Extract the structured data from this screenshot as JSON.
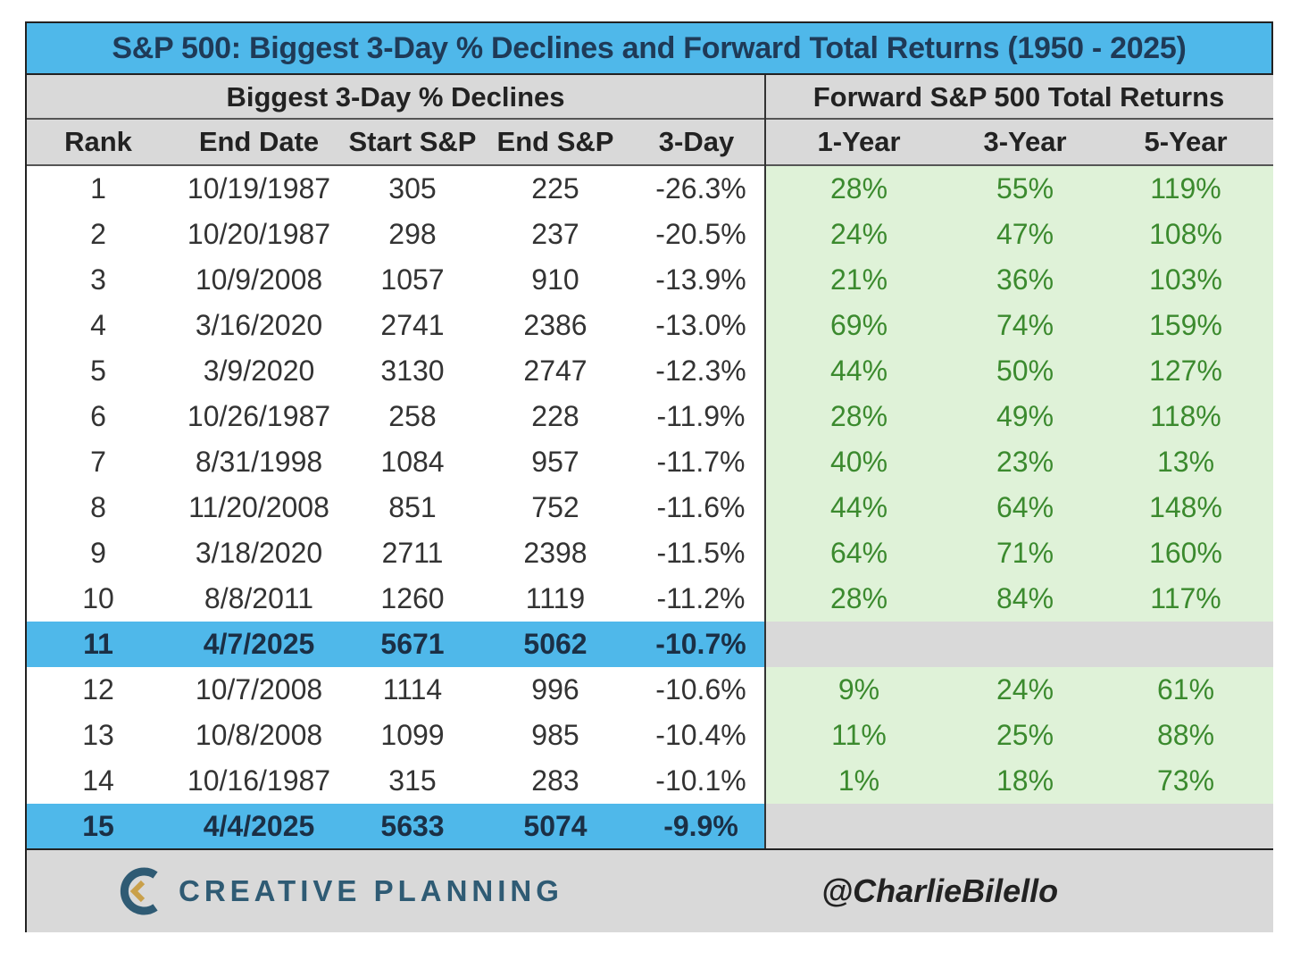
{
  "title": "S&P 500: Biggest 3-Day % Declines and Forward Total Returns (1950 - 2025)",
  "group_headers": {
    "left": "Biggest 3-Day % Declines",
    "right": "Forward S&P 500 Total Returns"
  },
  "columns": [
    "Rank",
    "End Date",
    "Start S&P",
    "End S&P",
    "3-Day",
    "1-Year",
    "3-Year",
    "5-Year"
  ],
  "colors": {
    "title_bg": "#4fb8ea",
    "highlight_bg": "#4fb8ea",
    "header_bg": "#d9d9d9",
    "positive_bg": "#dff2d8",
    "positive_text": "#3b8a2e"
  },
  "chart_data": {
    "type": "table",
    "title": "S&P 500: Biggest 3-Day % Declines and Forward Total Returns (1950 - 2025)",
    "rows": [
      {
        "rank": "1",
        "end_date": "10/19/1987",
        "start": "305",
        "end": "225",
        "decline": "-26.3%",
        "y1": "28%",
        "y3": "55%",
        "y5": "119%",
        "highlight": false
      },
      {
        "rank": "2",
        "end_date": "10/20/1987",
        "start": "298",
        "end": "237",
        "decline": "-20.5%",
        "y1": "24%",
        "y3": "47%",
        "y5": "108%",
        "highlight": false
      },
      {
        "rank": "3",
        "end_date": "10/9/2008",
        "start": "1057",
        "end": "910",
        "decline": "-13.9%",
        "y1": "21%",
        "y3": "36%",
        "y5": "103%",
        "highlight": false
      },
      {
        "rank": "4",
        "end_date": "3/16/2020",
        "start": "2741",
        "end": "2386",
        "decline": "-13.0%",
        "y1": "69%",
        "y3": "74%",
        "y5": "159%",
        "highlight": false
      },
      {
        "rank": "5",
        "end_date": "3/9/2020",
        "start": "3130",
        "end": "2747",
        "decline": "-12.3%",
        "y1": "44%",
        "y3": "50%",
        "y5": "127%",
        "highlight": false
      },
      {
        "rank": "6",
        "end_date": "10/26/1987",
        "start": "258",
        "end": "228",
        "decline": "-11.9%",
        "y1": "28%",
        "y3": "49%",
        "y5": "118%",
        "highlight": false
      },
      {
        "rank": "7",
        "end_date": "8/31/1998",
        "start": "1084",
        "end": "957",
        "decline": "-11.7%",
        "y1": "40%",
        "y3": "23%",
        "y5": "13%",
        "highlight": false
      },
      {
        "rank": "8",
        "end_date": "11/20/2008",
        "start": "851",
        "end": "752",
        "decline": "-11.6%",
        "y1": "44%",
        "y3": "64%",
        "y5": "148%",
        "highlight": false
      },
      {
        "rank": "9",
        "end_date": "3/18/2020",
        "start": "2711",
        "end": "2398",
        "decline": "-11.5%",
        "y1": "64%",
        "y3": "71%",
        "y5": "160%",
        "highlight": false
      },
      {
        "rank": "10",
        "end_date": "8/8/2011",
        "start": "1260",
        "end": "1119",
        "decline": "-11.2%",
        "y1": "28%",
        "y3": "84%",
        "y5": "117%",
        "highlight": false
      },
      {
        "rank": "11",
        "end_date": "4/7/2025",
        "start": "5671",
        "end": "5062",
        "decline": "-10.7%",
        "y1": "",
        "y3": "",
        "y5": "",
        "highlight": true
      },
      {
        "rank": "12",
        "end_date": "10/7/2008",
        "start": "1114",
        "end": "996",
        "decline": "-10.6%",
        "y1": "9%",
        "y3": "24%",
        "y5": "61%",
        "highlight": false
      },
      {
        "rank": "13",
        "end_date": "10/8/2008",
        "start": "1099",
        "end": "985",
        "decline": "-10.4%",
        "y1": "11%",
        "y3": "25%",
        "y5": "88%",
        "highlight": false
      },
      {
        "rank": "14",
        "end_date": "10/16/1987",
        "start": "315",
        "end": "283",
        "decline": "-10.1%",
        "y1": "1%",
        "y3": "18%",
        "y5": "73%",
        "highlight": false
      },
      {
        "rank": "15",
        "end_date": "4/4/2025",
        "start": "5633",
        "end": "5074",
        "decline": "-9.9%",
        "y1": "",
        "y3": "",
        "y5": "",
        "highlight": true
      }
    ]
  },
  "footer": {
    "brand": "CREATIVE PLANNING",
    "handle": "@CharlieBilello"
  },
  "icons": {
    "logo": "creative-planning-logo-icon"
  }
}
